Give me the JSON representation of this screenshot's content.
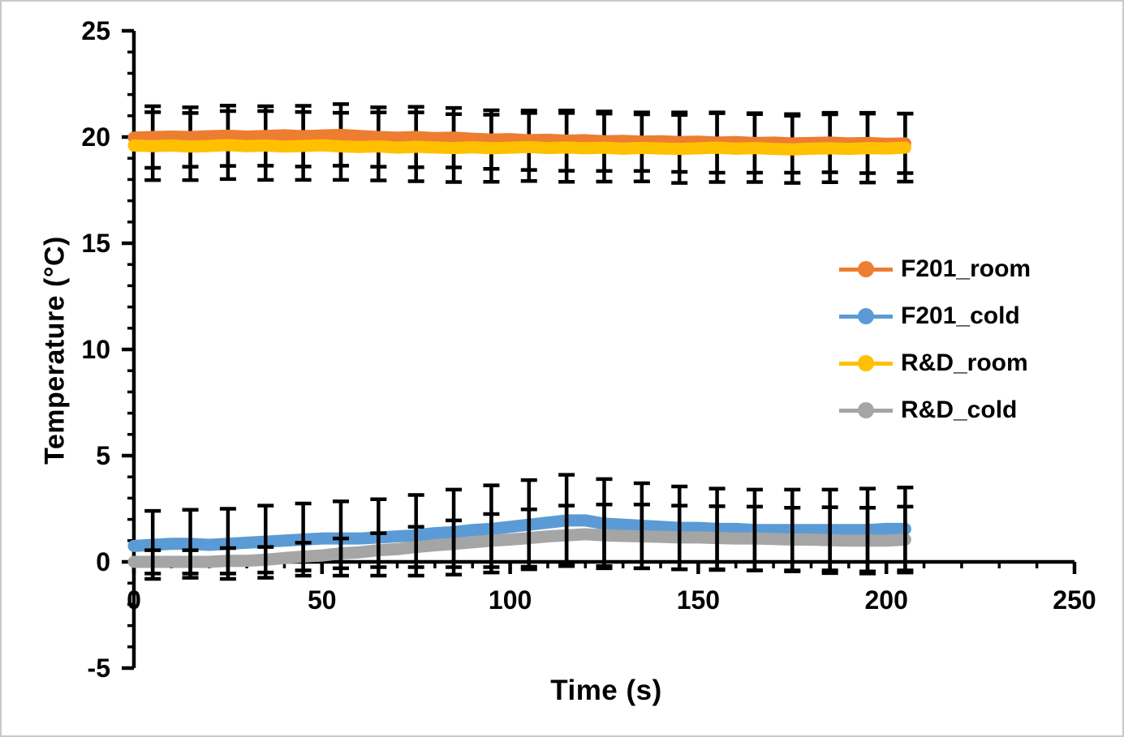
{
  "figure": {
    "background": "#ffffff",
    "border_color": "#c9c9c9",
    "axis_color": "#000000",
    "error_bar_color": "#000000"
  },
  "chart_data": {
    "type": "line",
    "title": "",
    "xlabel": "Time (s)",
    "ylabel": "Temperature (°C)",
    "xlim": [
      0,
      250
    ],
    "ylim": [
      -5,
      25
    ],
    "x_major_ticks": [
      0,
      50,
      100,
      150,
      200,
      250
    ],
    "x_minor_step": 10,
    "y_major_ticks": [
      -5,
      0,
      5,
      10,
      15,
      20,
      25
    ],
    "y_minor_step": 1,
    "grid": false,
    "legend_position": "middle-right",
    "x": [
      0,
      5,
      10,
      15,
      20,
      25,
      30,
      35,
      40,
      45,
      50,
      55,
      60,
      65,
      70,
      75,
      80,
      85,
      90,
      95,
      100,
      105,
      110,
      115,
      120,
      125,
      130,
      135,
      140,
      145,
      150,
      155,
      160,
      165,
      170,
      175,
      180,
      185,
      190,
      195,
      200,
      205
    ],
    "error_t": [
      5,
      15,
      25,
      35,
      45,
      55,
      65,
      75,
      85,
      95,
      105,
      115,
      125,
      135,
      145,
      155,
      165,
      175,
      185,
      195,
      205
    ],
    "series": [
      {
        "name": "F201_room",
        "color": "#ED7D31",
        "values": [
          19.97,
          20.0,
          20.02,
          20.0,
          20.04,
          20.06,
          20.02,
          20.05,
          20.08,
          20.04,
          20.07,
          20.1,
          20.05,
          20.0,
          19.97,
          20.0,
          19.95,
          19.97,
          19.92,
          19.88,
          19.9,
          19.85,
          19.87,
          19.83,
          19.85,
          19.8,
          19.82,
          19.78,
          19.8,
          19.76,
          19.78,
          19.74,
          19.76,
          19.72,
          19.74,
          19.7,
          19.72,
          19.74,
          19.7,
          19.72,
          19.68,
          19.7
        ],
        "error": [
          1.45,
          1.4,
          1.42,
          1.4,
          1.43,
          1.45,
          1.4,
          1.42,
          1.4,
          1.38,
          1.4,
          1.42,
          1.4,
          1.38,
          1.4,
          1.42,
          1.4,
          1.38,
          1.4,
          1.42,
          1.4
        ]
      },
      {
        "name": "F201_cold",
        "color": "#5B9BD5",
        "values": [
          0.75,
          0.8,
          0.85,
          0.85,
          0.8,
          0.85,
          0.9,
          0.95,
          1.0,
          1.05,
          1.1,
          1.1,
          1.1,
          1.15,
          1.2,
          1.25,
          1.35,
          1.4,
          1.5,
          1.55,
          1.65,
          1.75,
          1.85,
          1.95,
          1.95,
          1.8,
          1.75,
          1.7,
          1.65,
          1.6,
          1.6,
          1.55,
          1.55,
          1.5,
          1.5,
          1.5,
          1.5,
          1.5,
          1.5,
          1.5,
          1.55,
          1.55
        ],
        "error": [
          1.6,
          1.6,
          1.65,
          1.7,
          1.7,
          1.75,
          1.8,
          1.9,
          2.0,
          2.05,
          2.1,
          2.15,
          2.1,
          2.0,
          1.95,
          1.9,
          1.9,
          1.9,
          1.9,
          1.95,
          1.95
        ]
      },
      {
        "name": "R&D_room",
        "color": "#FFC000",
        "values": [
          19.6,
          19.57,
          19.6,
          19.55,
          19.58,
          19.62,
          19.57,
          19.6,
          19.55,
          19.58,
          19.61,
          19.56,
          19.53,
          19.56,
          19.5,
          19.54,
          19.51,
          19.48,
          19.52,
          19.47,
          19.5,
          19.53,
          19.48,
          19.51,
          19.47,
          19.5,
          19.45,
          19.49,
          19.46,
          19.44,
          19.47,
          19.5,
          19.45,
          19.48,
          19.44,
          19.42,
          19.45,
          19.47,
          19.44,
          19.48,
          19.46,
          19.5
        ],
        "error": [
          1.6,
          1.58,
          1.6,
          1.62,
          1.6,
          1.58,
          1.6,
          1.62,
          1.6,
          1.58,
          1.6,
          1.62,
          1.6,
          1.58,
          1.6,
          1.62,
          1.6,
          1.58,
          1.6,
          1.62,
          1.6
        ]
      },
      {
        "name": "R&D_cold",
        "color": "#A5A5A5",
        "values": [
          0.0,
          0.0,
          0.0,
          0.0,
          0.0,
          0.05,
          0.05,
          0.1,
          0.18,
          0.25,
          0.3,
          0.4,
          0.45,
          0.55,
          0.6,
          0.7,
          0.78,
          0.85,
          0.92,
          1.0,
          1.05,
          1.12,
          1.2,
          1.25,
          1.3,
          1.25,
          1.22,
          1.2,
          1.18,
          1.15,
          1.15,
          1.12,
          1.1,
          1.1,
          1.08,
          1.05,
          1.05,
          1.02,
          1.0,
          1.0,
          1.0,
          1.05
        ],
        "error": [
          0.55,
          0.55,
          0.6,
          0.6,
          0.65,
          0.7,
          0.8,
          0.95,
          1.1,
          1.25,
          1.35,
          1.4,
          1.45,
          1.5,
          1.5,
          1.5,
          1.5,
          1.5,
          1.55,
          1.55,
          1.55
        ]
      }
    ]
  },
  "legend": {
    "items": [
      {
        "label": "F201_room",
        "color": "#ED7D31"
      },
      {
        "label": "F201_cold",
        "color": "#5B9BD5"
      },
      {
        "label": "R&D_room",
        "color": "#FFC000"
      },
      {
        "label": "R&D_cold",
        "color": "#A5A5A5"
      }
    ]
  }
}
